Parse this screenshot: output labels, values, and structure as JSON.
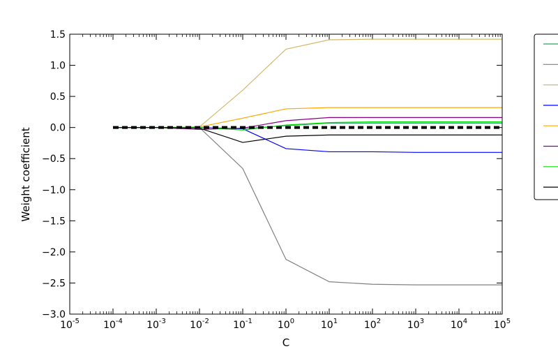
{
  "chart_data": {
    "type": "line",
    "xscale": "log",
    "xlabel": "C",
    "ylabel": "Weight coefficient",
    "xlim": [
      1e-05,
      100000
    ],
    "ylim": [
      -3.0,
      1.5
    ],
    "x_tick_base": "10",
    "x_tick_exponents": [
      "-5",
      "-4",
      "-3",
      "-2",
      "-1",
      "0",
      "1",
      "2",
      "3",
      "4",
      "5"
    ],
    "y_ticks": [
      1.5,
      1.0,
      0.5,
      0.0,
      -0.5,
      -1.0,
      -1.5,
      -2.0,
      -2.5,
      -3.0
    ],
    "y_tick_labels": [
      "1.5",
      "1.0",
      "0.5",
      "0.0",
      "−0.5",
      "−1.0",
      "−1.5",
      "−2.0",
      "−2.5",
      "−3.0"
    ],
    "grid": false,
    "legend_placement": "right, outside the plot area",
    "x": [
      0.0001,
      0.001,
      0.01,
      0.1,
      1,
      10,
      100,
      1000,
      10000,
      100000
    ],
    "series": [
      {
        "color": "#2ca25f",
        "values": [
          0,
          0,
          0,
          -0.02,
          0.03,
          0.07,
          0.07,
          0.07,
          0.07,
          0.07
        ]
      },
      {
        "color": "#808080",
        "values": [
          0,
          0,
          0,
          -0.66,
          -2.12,
          -2.48,
          -2.52,
          -2.53,
          -2.53,
          -2.53
        ]
      },
      {
        "color": "#d4b96a",
        "values": [
          0,
          0,
          0.01,
          0.6,
          1.26,
          1.41,
          1.42,
          1.42,
          1.42,
          1.42
        ]
      },
      {
        "color": "#0000ff",
        "values": [
          0,
          0,
          0,
          -0.02,
          -0.34,
          -0.39,
          -0.39,
          -0.4,
          -0.4,
          -0.4
        ]
      },
      {
        "color": "#ffa500",
        "values": [
          0,
          0,
          0.01,
          0.15,
          0.3,
          0.32,
          0.32,
          0.32,
          0.32,
          0.32
        ]
      },
      {
        "color": "#8b008b",
        "values": [
          0,
          0,
          -0.03,
          -0.01,
          0.11,
          0.16,
          0.16,
          0.16,
          0.16,
          0.16
        ]
      },
      {
        "color": "#00e000",
        "values": [
          0,
          0,
          0,
          -0.04,
          0.04,
          0.08,
          0.09,
          0.09,
          0.09,
          0.09
        ]
      },
      {
        "color": "#000000",
        "values": [
          0,
          0,
          -0.01,
          -0.24,
          -0.14,
          -0.12,
          -0.12,
          -0.12,
          -0.12,
          -0.12
        ]
      }
    ],
    "reference_line": {
      "y": 0.0,
      "style": "dashed",
      "color": "#000000"
    }
  }
}
